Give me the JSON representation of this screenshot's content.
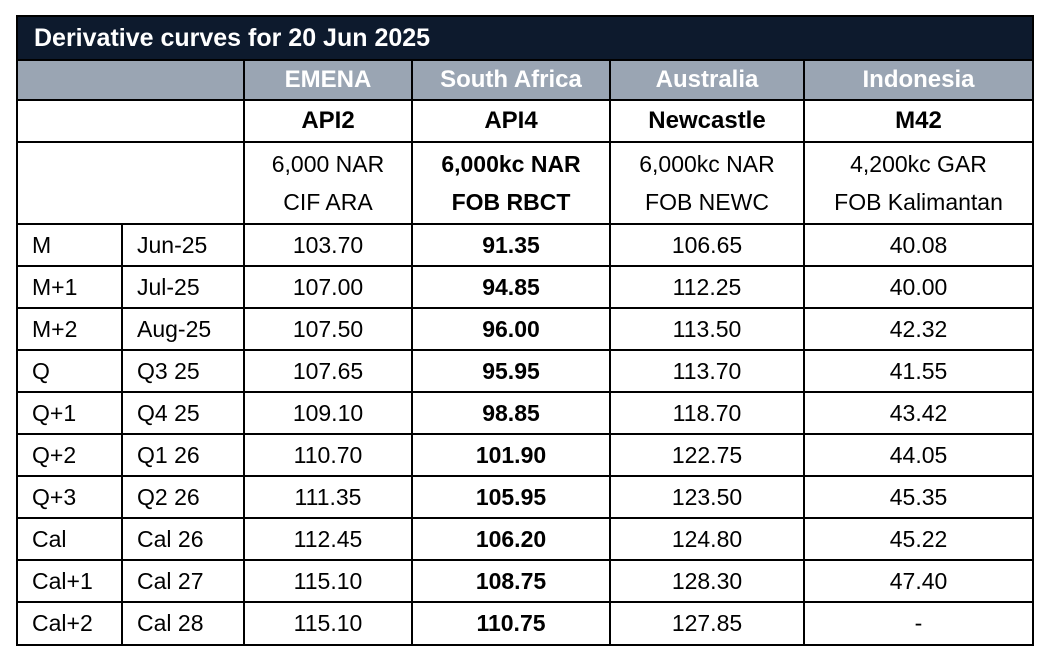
{
  "title": "Derivative curves for 20 Jun 2025",
  "columns": [
    {
      "region": "EMENA",
      "code": "API2",
      "spec_line1": "6,000 NAR",
      "spec_line2": "CIF ARA"
    },
    {
      "region": "South Africa",
      "code": "API4",
      "spec_line1": "6,000kc NAR",
      "spec_line2": "FOB RBCT"
    },
    {
      "region": "Australia",
      "code": "Newcastle",
      "spec_line1": "6,000kc NAR",
      "spec_line2": "FOB NEWC"
    },
    {
      "region": "Indonesia",
      "code": "M42",
      "spec_line1": "4,200kc GAR",
      "spec_line2": "FOB Kalimantan"
    }
  ],
  "rows": [
    {
      "tenor": "M",
      "period": "Jun-25",
      "values": [
        "103.70",
        "91.35",
        "106.65",
        "40.08"
      ]
    },
    {
      "tenor": "M+1",
      "period": "Jul-25",
      "values": [
        "107.00",
        "94.85",
        "112.25",
        "40.00"
      ]
    },
    {
      "tenor": "M+2",
      "period": "Aug-25",
      "values": [
        "107.50",
        "96.00",
        "113.50",
        "42.32"
      ]
    },
    {
      "tenor": "Q",
      "period": "Q3 25",
      "values": [
        "107.65",
        "95.95",
        "113.70",
        "41.55"
      ]
    },
    {
      "tenor": "Q+1",
      "period": "Q4 25",
      "values": [
        "109.10",
        "98.85",
        "118.70",
        "43.42"
      ]
    },
    {
      "tenor": "Q+2",
      "period": "Q1 26",
      "values": [
        "110.70",
        "101.90",
        "122.75",
        "44.05"
      ]
    },
    {
      "tenor": "Q+3",
      "period": "Q2 26",
      "values": [
        "111.35",
        "105.95",
        "123.50",
        "45.35"
      ]
    },
    {
      "tenor": "Cal",
      "period": "Cal 26",
      "values": [
        "112.45",
        "106.20",
        "124.80",
        "45.22"
      ]
    },
    {
      "tenor": "Cal+1",
      "period": "Cal 27",
      "values": [
        "115.10",
        "108.75",
        "128.30",
        "47.40"
      ]
    },
    {
      "tenor": "Cal+2",
      "period": "Cal 28",
      "values": [
        "115.10",
        "110.75",
        "127.85",
        "-"
      ]
    }
  ],
  "colors": {
    "title_bg": "#0d1a2d",
    "header_bg": "#9aa5b3",
    "border": "#000000"
  }
}
